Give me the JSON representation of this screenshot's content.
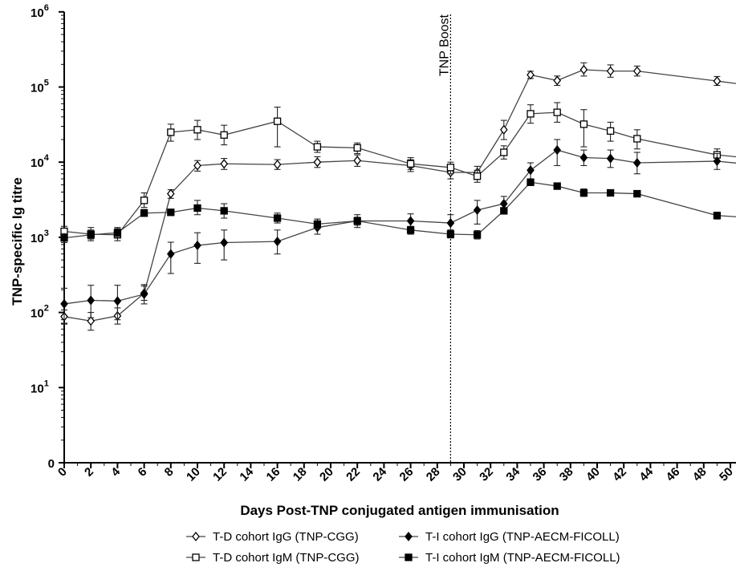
{
  "chart_data": {
    "type": "line",
    "ylabel": "TNP-specific Ig titre",
    "xlabel": "Days Post-TNP conjugated antigen immunisation",
    "x_scale": "linear",
    "y_scale": "log",
    "xlim": [
      0,
      50
    ],
    "ylim_log_exponents": [
      0,
      6
    ],
    "x_ticks": [
      "0",
      "2",
      "4",
      "6",
      "8",
      "10",
      "12",
      "14",
      "16",
      "18",
      "20",
      "22",
      "24",
      "26",
      "28",
      "30",
      "32",
      "34",
      "36",
      "38",
      "40",
      "42",
      "44",
      "46",
      "48",
      "50"
    ],
    "y_ticks": [
      {
        "base": "0",
        "exp": ""
      },
      {
        "base": "10",
        "exp": "1"
      },
      {
        "base": "10",
        "exp": "2"
      },
      {
        "base": "10",
        "exp": "3"
      },
      {
        "base": "10",
        "exp": "4"
      },
      {
        "base": "10",
        "exp": "5"
      },
      {
        "base": "10",
        "exp": "6"
      }
    ],
    "annotation": {
      "text": "TNP Boost",
      "x": 29
    },
    "legend_position": "bottom",
    "series": [
      {
        "name": "T-D cohort  IgG (TNP-CGG)",
        "marker": "open-diamond",
        "points": [
          {
            "x": 0,
            "y": 88,
            "lo": 72,
            "hi": 108
          },
          {
            "x": 2,
            "y": 77,
            "lo": 58,
            "hi": 100
          },
          {
            "x": 4,
            "y": 90,
            "lo": 70,
            "hi": 115
          },
          {
            "x": 6,
            "y": 180,
            "lo": 145,
            "hi": 225
          },
          {
            "x": 8,
            "y": 3800,
            "lo": 3300,
            "hi": 4300
          },
          {
            "x": 10,
            "y": 9000,
            "lo": 7600,
            "hi": 10500
          },
          {
            "x": 12,
            "y": 9500,
            "lo": 8000,
            "hi": 11200
          },
          {
            "x": 16,
            "y": 9300,
            "lo": 8000,
            "hi": 10800
          },
          {
            "x": 19,
            "y": 10000,
            "lo": 8500,
            "hi": 11800
          },
          {
            "x": 22,
            "y": 10500,
            "lo": 8800,
            "hi": 12500
          },
          {
            "x": 26,
            "y": 9000,
            "lo": 7500,
            "hi": 10800
          },
          {
            "x": 29,
            "y": 7300,
            "lo": 6000,
            "hi": 8800
          },
          {
            "x": 31,
            "y": 7300,
            "lo": 6000,
            "hi": 8800
          },
          {
            "x": 33,
            "y": 27000,
            "lo": 20000,
            "hi": 36000
          },
          {
            "x": 35,
            "y": 145000,
            "lo": 130000,
            "hi": 162000
          },
          {
            "x": 37,
            "y": 122000,
            "lo": 105000,
            "hi": 140000
          },
          {
            "x": 39,
            "y": 170000,
            "lo": 140000,
            "hi": 210000
          },
          {
            "x": 41,
            "y": 163000,
            "lo": 135000,
            "hi": 197000
          },
          {
            "x": 43,
            "y": 163000,
            "lo": 140000,
            "hi": 190000
          },
          {
            "x": 49,
            "y": 120000,
            "lo": 105000,
            "hi": 138000
          },
          {
            "x": 51,
            "y": 108000,
            "lo": 95000,
            "hi": 123000
          }
        ]
      },
      {
        "name": "T-D cohort  IgM (TNP-CGG)",
        "marker": "open-square",
        "points": [
          {
            "x": 0,
            "y": 1200,
            "lo": 1000,
            "hi": 1400
          },
          {
            "x": 2,
            "y": 1100,
            "lo": 900,
            "hi": 1350
          },
          {
            "x": 4,
            "y": 1080,
            "lo": 900,
            "hi": 1300
          },
          {
            "x": 6,
            "y": 3100,
            "lo": 2500,
            "hi": 3900
          },
          {
            "x": 8,
            "y": 25000,
            "lo": 19000,
            "hi": 32000
          },
          {
            "x": 10,
            "y": 27000,
            "lo": 20000,
            "hi": 36000
          },
          {
            "x": 12,
            "y": 23000,
            "lo": 17000,
            "hi": 31000
          },
          {
            "x": 16,
            "y": 35000,
            "lo": 16000,
            "hi": 54000
          },
          {
            "x": 19,
            "y": 16000,
            "lo": 13500,
            "hi": 19000
          },
          {
            "x": 22,
            "y": 15500,
            "lo": 13000,
            "hi": 18000
          },
          {
            "x": 26,
            "y": 9500,
            "lo": 8000,
            "hi": 11500
          },
          {
            "x": 29,
            "y": 8500,
            "lo": 7000,
            "hi": 10000
          },
          {
            "x": 31,
            "y": 6500,
            "lo": 5400,
            "hi": 7800
          },
          {
            "x": 33,
            "y": 13500,
            "lo": 11000,
            "hi": 16500
          },
          {
            "x": 35,
            "y": 44000,
            "lo": 33000,
            "hi": 58000
          },
          {
            "x": 37,
            "y": 46000,
            "lo": 34000,
            "hi": 62000
          },
          {
            "x": 39,
            "y": 32000,
            "lo": 16000,
            "hi": 50000
          },
          {
            "x": 41,
            "y": 26000,
            "lo": 19000,
            "hi": 34000
          },
          {
            "x": 43,
            "y": 20500,
            "lo": 15000,
            "hi": 27000
          },
          {
            "x": 49,
            "y": 12500,
            "lo": 10500,
            "hi": 15000
          },
          {
            "x": 51,
            "y": 11500,
            "lo": 10000,
            "hi": 13500
          }
        ]
      },
      {
        "name": "T-I cohort IgG (TNP-AECM-FICOLL)",
        "marker": "filled-diamond",
        "points": [
          {
            "x": 0,
            "y": 130,
            "lo": 70,
            "hi": 210
          },
          {
            "x": 2,
            "y": 145,
            "lo": 85,
            "hi": 230
          },
          {
            "x": 4,
            "y": 142,
            "lo": 80,
            "hi": 230
          },
          {
            "x": 6,
            "y": 175,
            "lo": 130,
            "hi": 235
          },
          {
            "x": 8,
            "y": 600,
            "lo": 330,
            "hi": 860
          },
          {
            "x": 10,
            "y": 780,
            "lo": 450,
            "hi": 1150
          },
          {
            "x": 12,
            "y": 850,
            "lo": 500,
            "hi": 1250
          },
          {
            "x": 16,
            "y": 880,
            "lo": 600,
            "hi": 1250
          },
          {
            "x": 19,
            "y": 1350,
            "lo": 1100,
            "hi": 1650
          },
          {
            "x": 22,
            "y": 1650,
            "lo": 1350,
            "hi": 2000
          },
          {
            "x": 26,
            "y": 1650,
            "lo": 1350,
            "hi": 2050
          },
          {
            "x": 29,
            "y": 1550,
            "lo": 1250,
            "hi": 2000
          },
          {
            "x": 31,
            "y": 2300,
            "lo": 1500,
            "hi": 3100
          },
          {
            "x": 33,
            "y": 2800,
            "lo": 2200,
            "hi": 3500
          },
          {
            "x": 35,
            "y": 7800,
            "lo": 6000,
            "hi": 9800
          },
          {
            "x": 37,
            "y": 14500,
            "lo": 9000,
            "hi": 20000
          },
          {
            "x": 39,
            "y": 11500,
            "lo": 9000,
            "hi": 14500
          },
          {
            "x": 41,
            "y": 11200,
            "lo": 8500,
            "hi": 14500
          },
          {
            "x": 43,
            "y": 9800,
            "lo": 7000,
            "hi": 13500
          },
          {
            "x": 49,
            "y": 10300,
            "lo": 8000,
            "hi": 13000
          },
          {
            "x": 51,
            "y": 9500,
            "lo": 8000,
            "hi": 11500
          }
        ]
      },
      {
        "name": "T-I cohort IgM (TNP-AECM-FICOLL)",
        "marker": "filled-square",
        "points": [
          {
            "x": 0,
            "y": 980,
            "lo": 850,
            "hi": 1120
          },
          {
            "x": 2,
            "y": 1080,
            "lo": 950,
            "hi": 1250
          },
          {
            "x": 4,
            "y": 1150,
            "lo": 1000,
            "hi": 1350
          },
          {
            "x": 6,
            "y": 2100,
            "lo": 1900,
            "hi": 2350
          },
          {
            "x": 8,
            "y": 2150,
            "lo": 1950,
            "hi": 2350
          },
          {
            "x": 10,
            "y": 2450,
            "lo": 2000,
            "hi": 3100
          },
          {
            "x": 12,
            "y": 2250,
            "lo": 1800,
            "hi": 2800
          },
          {
            "x": 16,
            "y": 1800,
            "lo": 1550,
            "hi": 2100
          },
          {
            "x": 19,
            "y": 1500,
            "lo": 1300,
            "hi": 1750
          },
          {
            "x": 22,
            "y": 1650,
            "lo": 1450,
            "hi": 1850
          },
          {
            "x": 26,
            "y": 1250,
            "lo": 1100,
            "hi": 1400
          },
          {
            "x": 29,
            "y": 1100,
            "lo": 980,
            "hi": 1250
          },
          {
            "x": 31,
            "y": 1080,
            "lo": 950,
            "hi": 1230
          },
          {
            "x": 33,
            "y": 2250,
            "lo": 2050,
            "hi": 2450
          },
          {
            "x": 35,
            "y": 5400,
            "lo": 4900,
            "hi": 5900
          },
          {
            "x": 37,
            "y": 4800,
            "lo": 4400,
            "hi": 5200
          },
          {
            "x": 39,
            "y": 3900,
            "lo": 3500,
            "hi": 4400
          },
          {
            "x": 41,
            "y": 3900,
            "lo": 3550,
            "hi": 4300
          },
          {
            "x": 43,
            "y": 3800,
            "lo": 3450,
            "hi": 4150
          },
          {
            "x": 49,
            "y": 1950,
            "lo": 1750,
            "hi": 2150
          },
          {
            "x": 51,
            "y": 1850,
            "lo": 1650,
            "hi": 2050
          }
        ]
      }
    ]
  }
}
